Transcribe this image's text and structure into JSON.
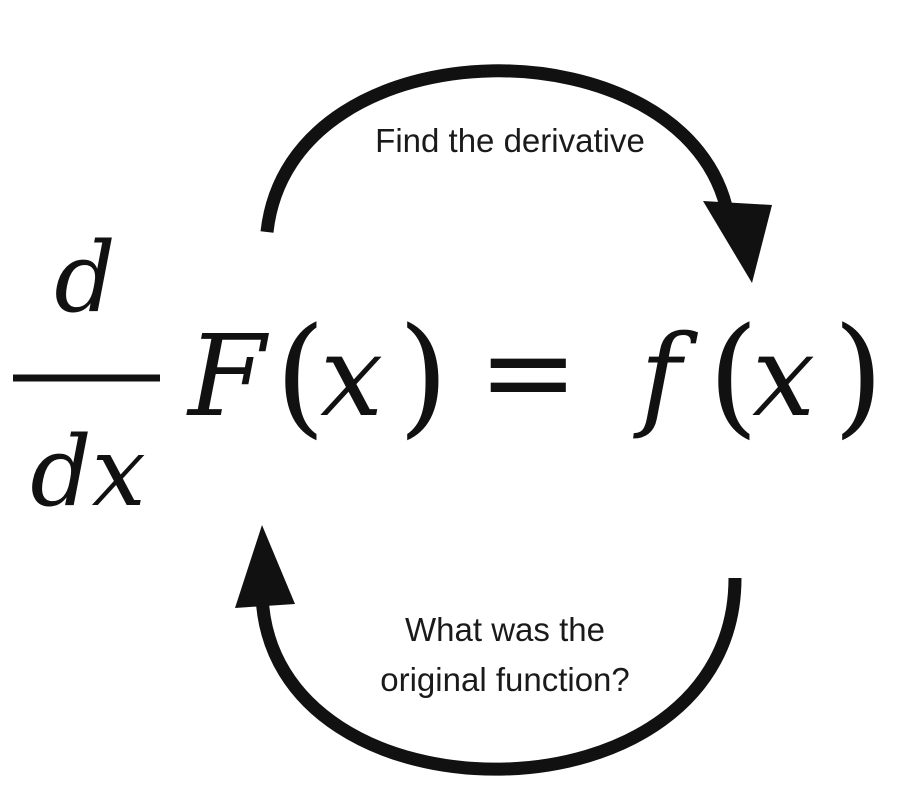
{
  "equation": {
    "numerator": "d",
    "denominator": "dx",
    "lhs_function": "F",
    "rhs_function": "f",
    "variable": "x",
    "open_paren": "(",
    "close_paren": ")",
    "equals": "="
  },
  "labels": {
    "top": "Find the derivative",
    "bottom_line1": "What was the",
    "bottom_line2": "original function?"
  },
  "colors": {
    "ink": "#111111",
    "background": "#ffffff"
  }
}
